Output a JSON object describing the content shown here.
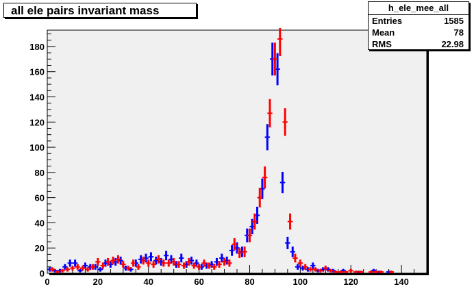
{
  "title": "all ele pairs invariant mass",
  "stats": {
    "name": "h_ele_mee_all",
    "rows": [
      {
        "label": "Entries",
        "value": "1585"
      },
      {
        "label": "Mean",
        "value": "78"
      },
      {
        "label": "RMS",
        "value": "22.98"
      }
    ]
  },
  "colors": {
    "plot_background": "#f0f0f0",
    "series_blue": "#0000ff",
    "series_red": "#ff0000"
  },
  "chart_data": {
    "type": "scatter",
    "title": "all ele pairs invariant mass",
    "xlim": [
      0,
      150
    ],
    "ylim": [
      0,
      193
    ],
    "xticks": [
      0,
      20,
      40,
      60,
      80,
      100,
      120,
      140
    ],
    "yticks": [
      0,
      20,
      40,
      60,
      80,
      100,
      120,
      140,
      160,
      180
    ],
    "grid": false,
    "series": [
      {
        "color": "#0000ff",
        "x": [
          1,
          3,
          5,
          7,
          9,
          11,
          13,
          15,
          17,
          19,
          21,
          23,
          25,
          27,
          29,
          31,
          33,
          35,
          37,
          39,
          41,
          43,
          45,
          47,
          49,
          51,
          53,
          55,
          57,
          59,
          61,
          63,
          65,
          67,
          69,
          71,
          73,
          75,
          77,
          79,
          81,
          83,
          85,
          87,
          89,
          91,
          93,
          95,
          97,
          99,
          101,
          103,
          105,
          107,
          109,
          111,
          113,
          115,
          117,
          119,
          121,
          123,
          125,
          127,
          129,
          131,
          133,
          135,
          137,
          139,
          141
        ],
        "y": [
          3,
          2,
          2,
          5,
          8,
          8,
          2,
          6,
          5,
          5,
          3,
          8,
          7,
          9,
          10,
          4,
          3,
          8,
          11,
          12,
          13,
          10,
          9,
          14,
          11,
          7,
          12,
          7,
          10,
          8,
          5,
          6,
          7,
          9,
          12,
          10,
          18,
          20,
          17,
          30,
          37,
          46,
          67,
          108,
          170,
          162,
          72,
          24,
          17,
          5,
          4,
          3,
          6,
          2,
          3,
          3,
          2,
          0,
          2,
          0,
          0,
          1,
          0,
          0,
          2,
          1,
          0,
          1,
          0,
          0,
          0
        ]
      },
      {
        "color": "#ff0000",
        "x": [
          2,
          4,
          6,
          8,
          10,
          12,
          14,
          16,
          18,
          20,
          22,
          24,
          26,
          28,
          30,
          32,
          34,
          36,
          38,
          40,
          42,
          44,
          46,
          48,
          50,
          52,
          54,
          56,
          58,
          60,
          62,
          64,
          66,
          68,
          70,
          72,
          74,
          76,
          78,
          80,
          82,
          84,
          86,
          88,
          90,
          92,
          94,
          96,
          98,
          100,
          102,
          104,
          106,
          108,
          110,
          112,
          114,
          116,
          118,
          120,
          122,
          124,
          126,
          128,
          130,
          132,
          134,
          136,
          138,
          140
        ],
        "y": [
          3,
          1,
          2,
          3,
          4,
          5,
          4,
          3,
          5,
          9,
          6,
          9,
          10,
          11,
          7,
          4,
          8,
          5,
          10,
          8,
          7,
          11,
          8,
          8,
          9,
          7,
          6,
          9,
          6,
          5,
          8,
          6,
          5,
          7,
          9,
          8,
          23,
          16,
          17,
          30,
          41,
          60,
          76,
          127,
          170,
          186,
          120,
          41,
          12,
          8,
          5,
          3,
          3,
          2,
          4,
          2,
          1,
          1,
          1,
          2,
          1,
          1,
          0,
          1,
          1,
          1,
          0,
          1,
          0,
          0
        ]
      }
    ]
  }
}
